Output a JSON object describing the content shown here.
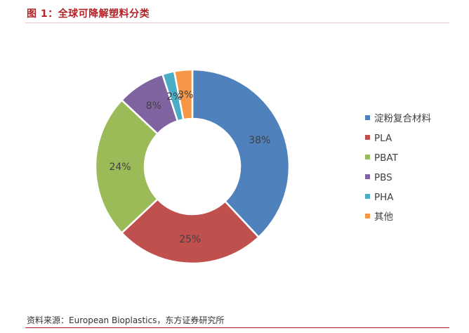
{
  "figure": {
    "title": "图 1：全球可降解塑料分类",
    "source": "资料来源：European Bioplastics，东方证券研究所"
  },
  "chart_data": {
    "type": "pie",
    "variant": "donut",
    "title": "",
    "legend_position": "right",
    "slices": [
      {
        "label": "淀粉复合材料",
        "value": 38,
        "display": "38%",
        "color": "#4f81bd"
      },
      {
        "label": "PLA",
        "value": 25,
        "display": "25%",
        "color": "#c0504d"
      },
      {
        "label": "PBAT",
        "value": 24,
        "display": "24%",
        "color": "#9bbb59"
      },
      {
        "label": "PBS",
        "value": 8,
        "display": "8%",
        "color": "#8064a2"
      },
      {
        "label": "PHA",
        "value": 2,
        "display": "2%",
        "color": "#4bacc6"
      },
      {
        "label": "其他",
        "value": 3,
        "display": "3%",
        "color": "#f79646"
      }
    ]
  }
}
